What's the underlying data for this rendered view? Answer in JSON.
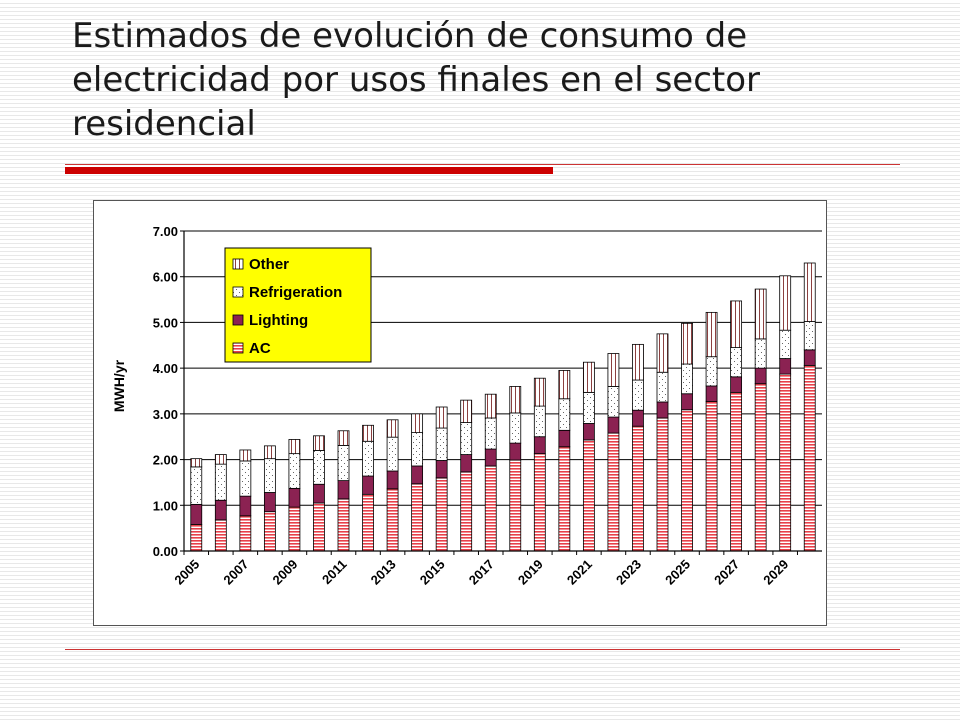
{
  "slide": {
    "title": "Estimados de evolución de consumo de electricidad por usos finales en el sector residencial"
  },
  "colors": {
    "accent_rule": "#cc0000",
    "legend_bg": "#ffff00",
    "ac": "#e8404a",
    "lighting": "#8b2252",
    "refrigeration_dot": "#666666",
    "other_line": "#8b4040"
  },
  "chart_data": {
    "type": "bar",
    "stacked": true,
    "title": "",
    "xlabel": "",
    "ylabel": "MWH/yr",
    "ylim": [
      0,
      7
    ],
    "yticks": [
      "0.00",
      "1.00",
      "2.00",
      "3.00",
      "4.00",
      "5.00",
      "6.00",
      "7.00"
    ],
    "grid": true,
    "legend_position": "top-left",
    "categories": [
      "2005",
      "2006",
      "2007",
      "2008",
      "2009",
      "2010",
      "2011",
      "2012",
      "2013",
      "2014",
      "2015",
      "2016",
      "2017",
      "2018",
      "2019",
      "2020",
      "2021",
      "2022",
      "2023",
      "2024",
      "2025",
      "2026",
      "2027",
      "2028",
      "2029",
      "2030"
    ],
    "x_tick_labels": [
      "2005",
      "",
      "2007",
      "",
      "2009",
      "",
      "2011",
      "",
      "2013",
      "",
      "2015",
      "",
      "2017",
      "",
      "2019",
      "",
      "2021",
      "",
      "2023",
      "",
      "2025",
      "",
      "2027",
      "",
      "2029",
      ""
    ],
    "series": [
      {
        "name": "AC",
        "values": [
          0.58,
          0.68,
          0.77,
          0.86,
          0.96,
          1.05,
          1.14,
          1.24,
          1.36,
          1.47,
          1.6,
          1.73,
          1.86,
          1.99,
          2.13,
          2.28,
          2.43,
          2.58,
          2.73,
          2.91,
          3.09,
          3.27,
          3.47,
          3.66,
          3.87,
          4.06
        ]
      },
      {
        "name": "Lighting",
        "values": [
          0.44,
          0.43,
          0.43,
          0.42,
          0.41,
          0.41,
          0.4,
          0.4,
          0.39,
          0.39,
          0.38,
          0.38,
          0.37,
          0.37,
          0.37,
          0.36,
          0.36,
          0.35,
          0.35,
          0.35,
          0.35,
          0.34,
          0.34,
          0.34,
          0.34,
          0.34
        ]
      },
      {
        "name": "Refrigeration",
        "values": [
          0.82,
          0.79,
          0.77,
          0.74,
          0.76,
          0.74,
          0.77,
          0.76,
          0.74,
          0.73,
          0.71,
          0.7,
          0.68,
          0.66,
          0.67,
          0.69,
          0.68,
          0.67,
          0.66,
          0.65,
          0.65,
          0.64,
          0.64,
          0.64,
          0.62,
          0.62
        ]
      },
      {
        "name": "Other",
        "values": [
          0.18,
          0.21,
          0.24,
          0.28,
          0.31,
          0.32,
          0.32,
          0.35,
          0.38,
          0.41,
          0.46,
          0.49,
          0.52,
          0.58,
          0.61,
          0.62,
          0.66,
          0.72,
          0.78,
          0.84,
          0.89,
          0.97,
          1.02,
          1.09,
          1.19,
          1.28
        ]
      }
    ],
    "legend": [
      "Other",
      "Refrigeration",
      "Lighting",
      "AC"
    ]
  }
}
